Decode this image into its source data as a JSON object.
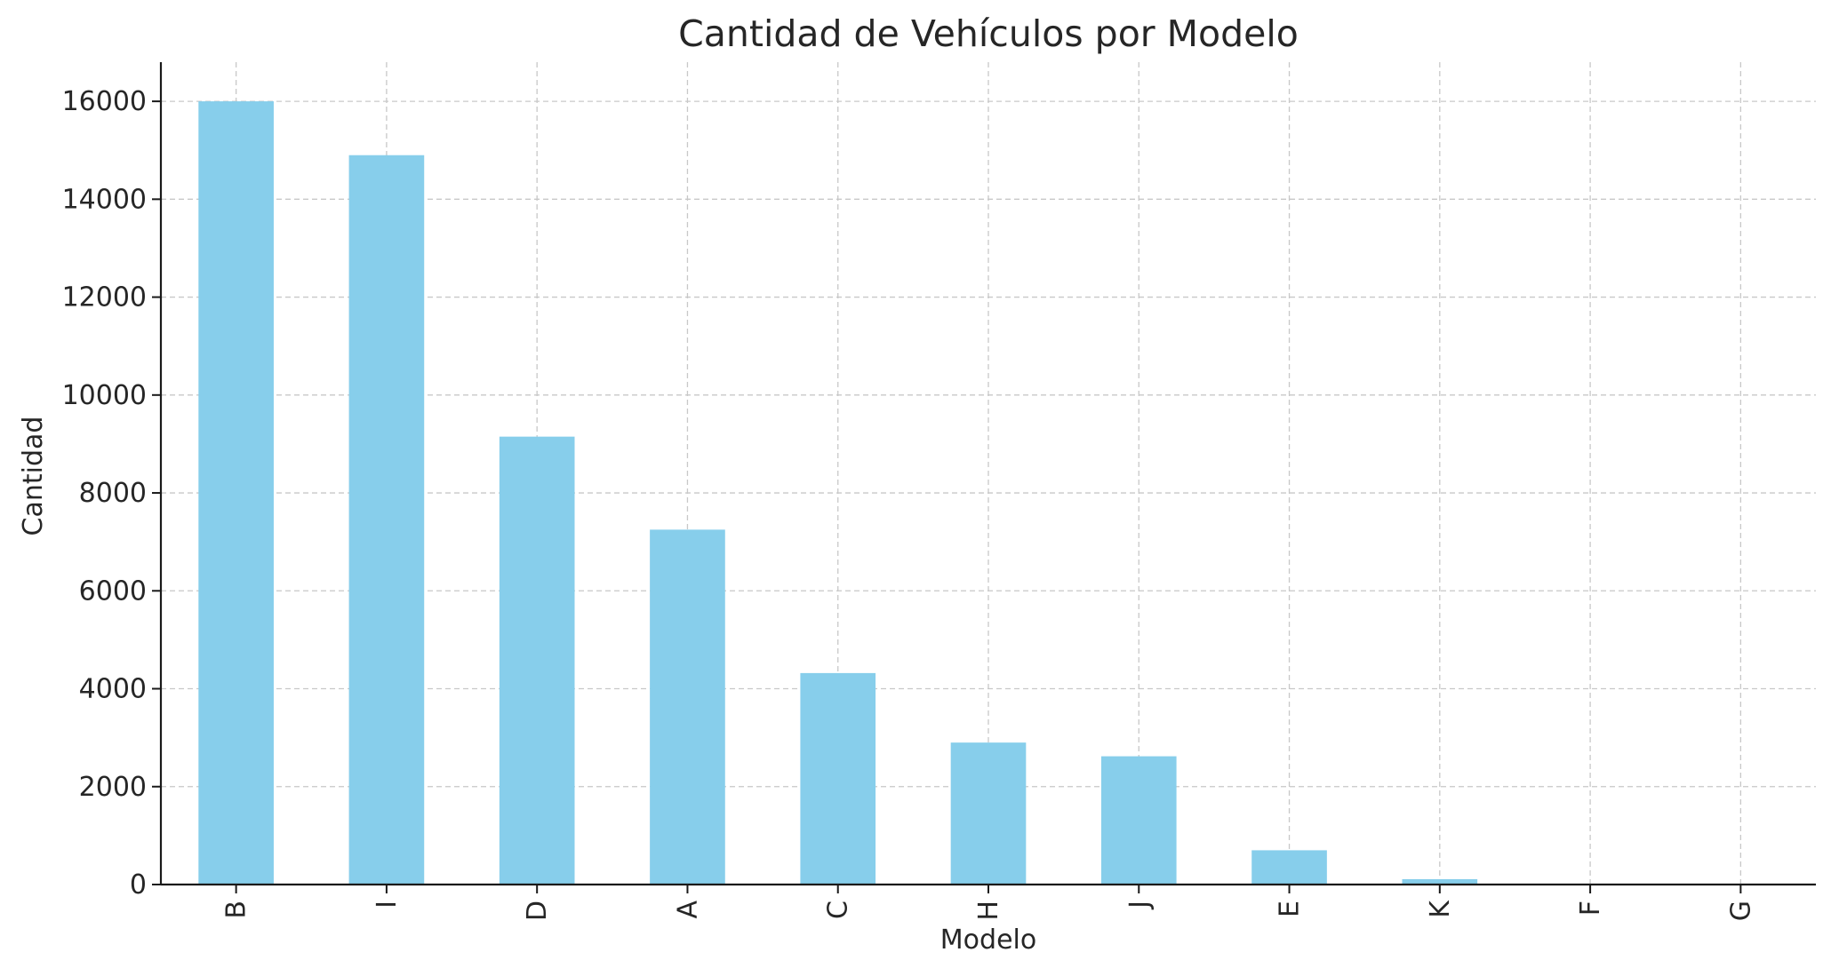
{
  "chart_data": {
    "type": "bar",
    "title": "Cantidad de Vehículos por Modelo",
    "xlabel": "Modelo",
    "ylabel": "Cantidad",
    "categories": [
      "B",
      "I",
      "D",
      "A",
      "C",
      "H",
      "J",
      "E",
      "K",
      "F",
      "G"
    ],
    "values": [
      16000,
      14900,
      9150,
      7250,
      4320,
      2900,
      2620,
      700,
      110,
      0,
      0
    ],
    "ylim": [
      0,
      16800
    ],
    "yticks": [
      0,
      2000,
      4000,
      6000,
      8000,
      10000,
      12000,
      14000,
      16000
    ],
    "grid": true,
    "bar_color": "#87CEEB",
    "legend": "none"
  }
}
